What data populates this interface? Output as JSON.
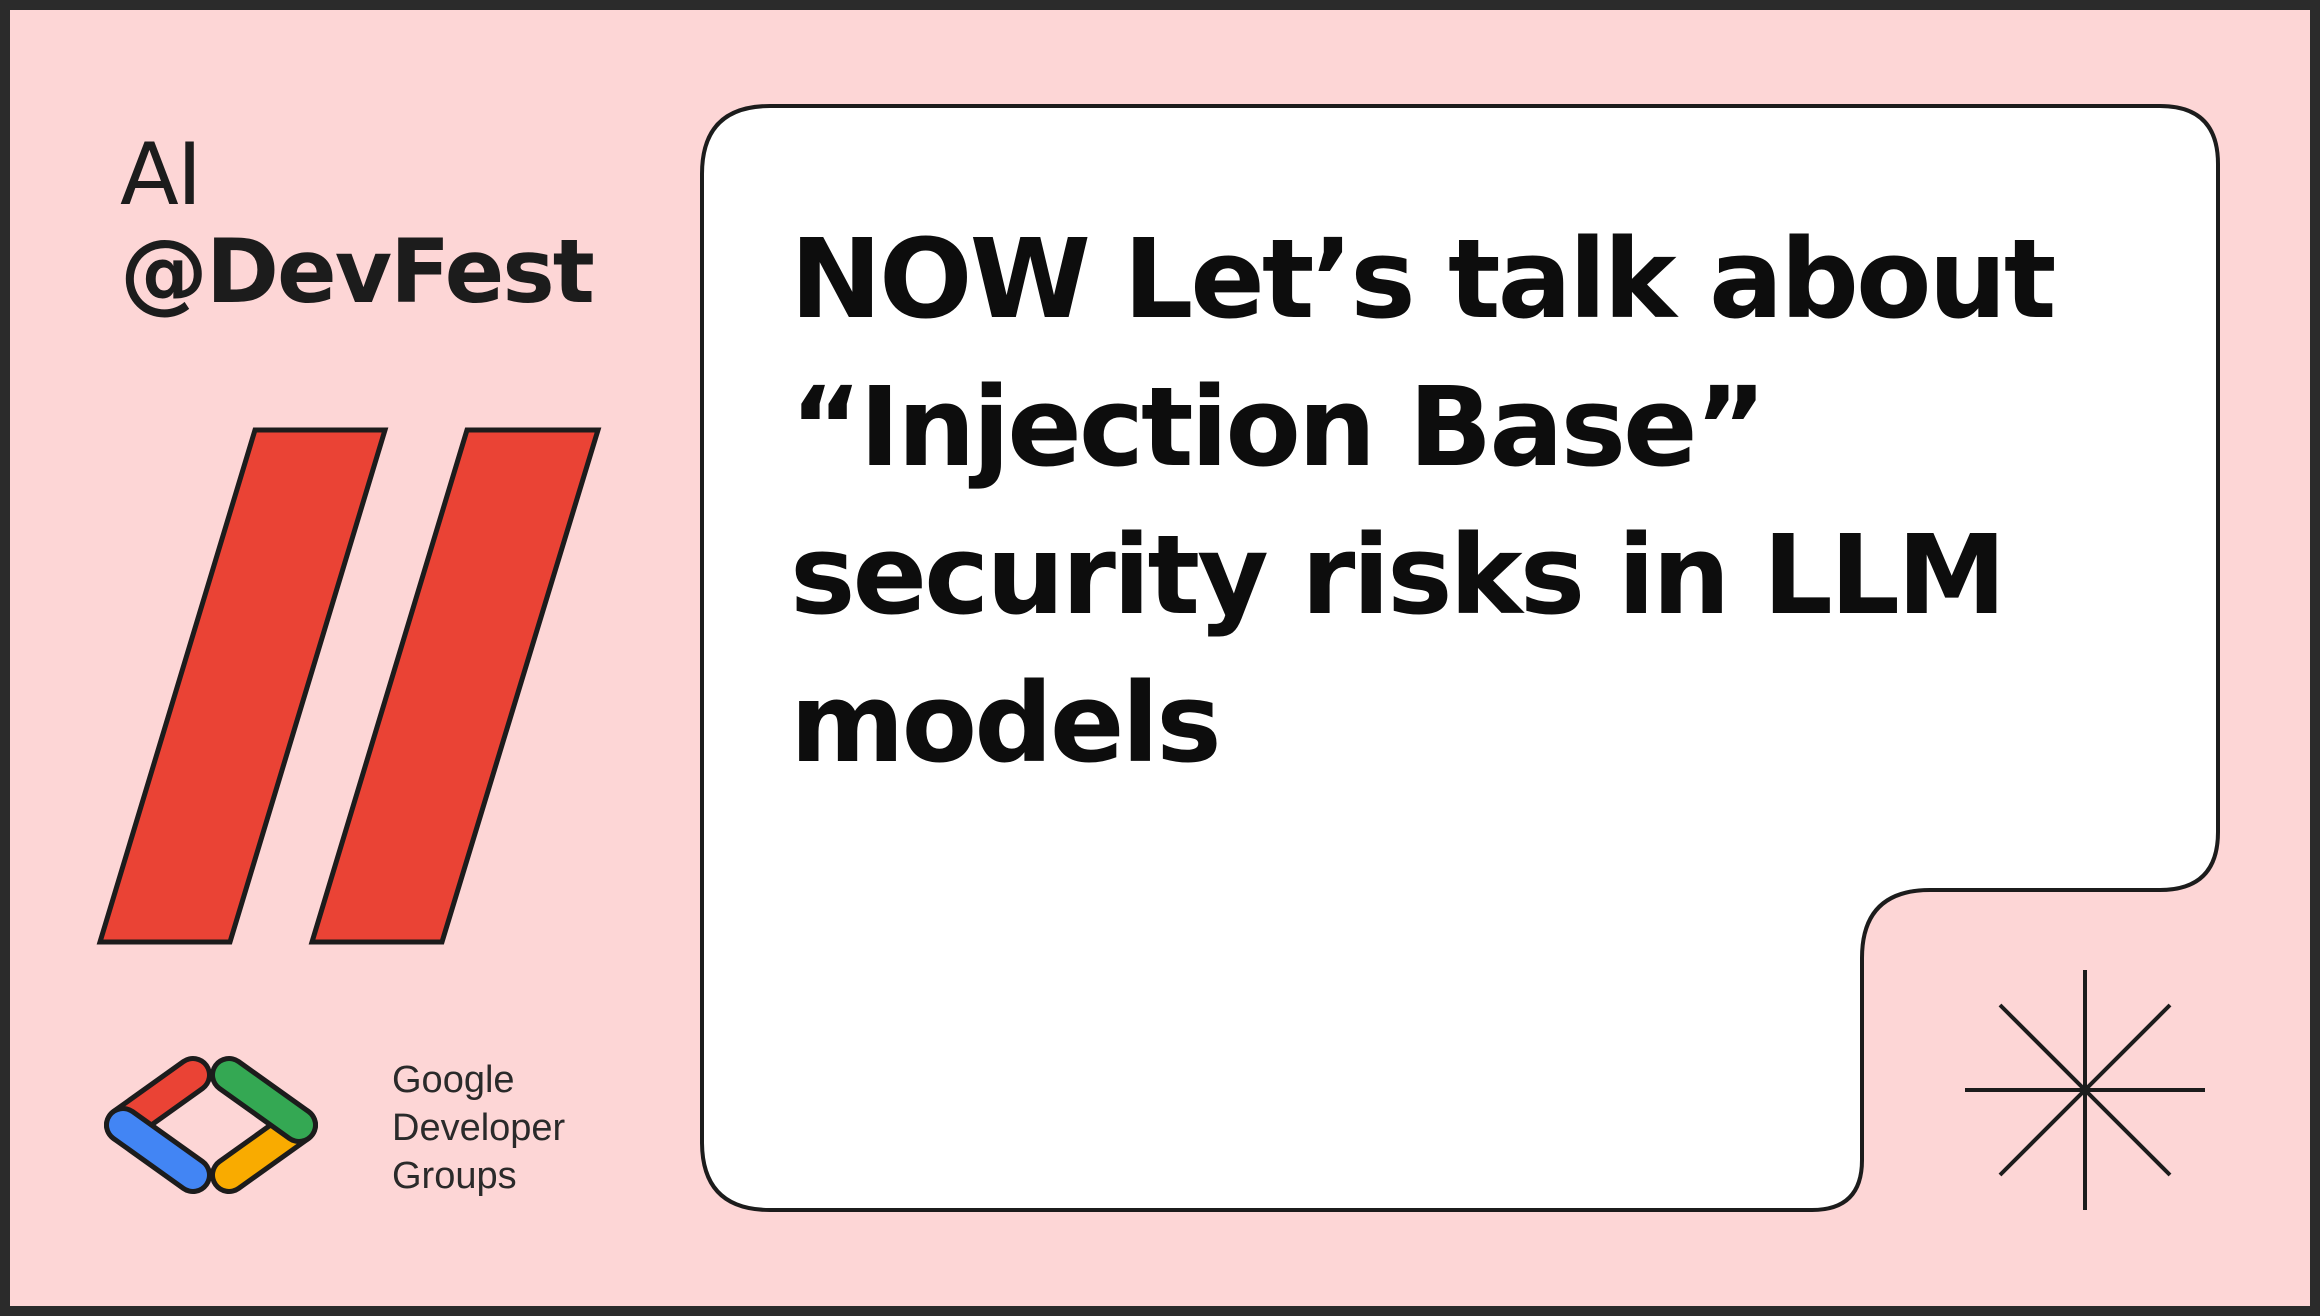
{
  "brand": {
    "line1": "AI",
    "line2": "@DevFest"
  },
  "headline": {
    "lines": [
      "NOW Let’s talk about",
      "“Injection Base”",
      "security risks in LLM",
      "models"
    ]
  },
  "logo": {
    "icon": "google-developer-groups-icon",
    "lines": [
      "Google",
      "Developer",
      "Groups"
    ]
  },
  "decor": {
    "slash_icon": "double-slash-icon",
    "sparkle_icon": "sparkle-icon"
  },
  "colors": {
    "background": "#fdd6d6",
    "card": "#ffffff",
    "outline": "#1c1c1c",
    "slash_red": "#ea4335",
    "google_blue": "#4285f4",
    "google_red": "#ea4335",
    "google_green": "#34a853",
    "google_yellow": "#f9ab00"
  }
}
